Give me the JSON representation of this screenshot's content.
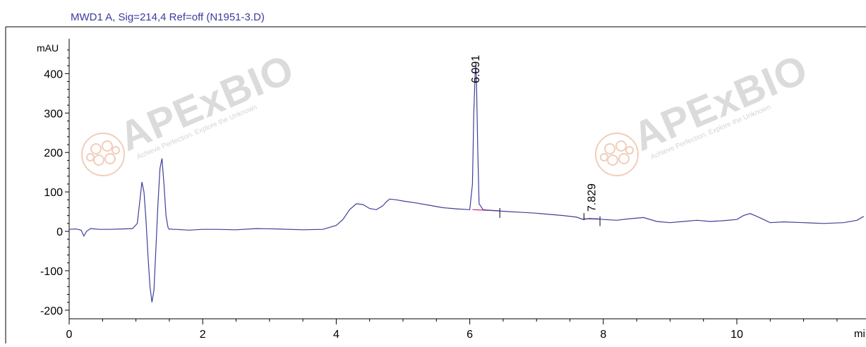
{
  "chart_data": {
    "type": "line",
    "title": "MWD1 A, Sig=214,4 Ref=off (N1951-3.D)",
    "ylabel": "mAU",
    "xlabel": "min",
    "xlim": [
      0,
      11.9
    ],
    "ylim": [
      -210,
      480
    ],
    "x_ticks": [
      0,
      2,
      4,
      6,
      8,
      10
    ],
    "y_ticks": [
      400,
      300,
      200,
      100,
      0,
      -100,
      -200
    ],
    "x_tick_labels": [
      "0",
      "2",
      "4",
      "6",
      "8",
      "10"
    ],
    "y_tick_labels": [
      "400",
      "300",
      "200",
      "100",
      "0",
      "-100",
      "-200"
    ],
    "grid": false,
    "legend": "none",
    "colors": {
      "trace": "#3f3f9a",
      "baseline": "#d0308a",
      "title": "#3a3aa0",
      "axis": "#000000",
      "watermark": "#d8d8d8",
      "watermark_accent": "#f0c8b4"
    },
    "peak_labels": [
      {
        "x": 6.091,
        "y": 400,
        "text": "6.091"
      },
      {
        "x": 7.829,
        "y": 32,
        "text": "7.829"
      }
    ],
    "series": [
      {
        "x": [
          0,
          0.1,
          0.18,
          0.22,
          0.26,
          0.32,
          0.45,
          0.6,
          0.8,
          0.95,
          1.02,
          1.06,
          1.09,
          1.12,
          1.15,
          1.18,
          1.21,
          1.24,
          1.27,
          1.3,
          1.33,
          1.36,
          1.39,
          1.42,
          1.45,
          1.48,
          1.5,
          1.52,
          1.55,
          1.6,
          1.7,
          1.8,
          2.0,
          2.2,
          2.5,
          2.8,
          3.1,
          3.5,
          3.8,
          4.0,
          4.1,
          4.2,
          4.3,
          4.4,
          4.5,
          4.6,
          4.7,
          4.75,
          4.8,
          4.9,
          5.0,
          5.2,
          5.4,
          5.6,
          5.8,
          6.0,
          6.04,
          6.06,
          6.08,
          6.091,
          6.1,
          6.12,
          6.14,
          6.2,
          6.4,
          6.6,
          6.8,
          7.0,
          7.2,
          7.4,
          7.6,
          7.7,
          7.8,
          7.829,
          7.9,
          8.0,
          8.2,
          8.4,
          8.6,
          8.8,
          9.0,
          9.2,
          9.4,
          9.6,
          9.8,
          10.0,
          10.1,
          10.2,
          10.3,
          10.4,
          10.5,
          10.7,
          11.0,
          11.3,
          11.6,
          11.8,
          11.9
        ],
        "y": [
          5,
          6,
          3,
          -12,
          0,
          7,
          5,
          5,
          6,
          7,
          20,
          80,
          125,
          100,
          30,
          -60,
          -140,
          -180,
          -150,
          -40,
          70,
          160,
          185,
          120,
          40,
          10,
          5,
          6,
          5,
          5,
          4,
          3,
          5,
          5,
          4,
          7,
          6,
          4,
          5,
          15,
          30,
          55,
          70,
          68,
          58,
          55,
          65,
          75,
          82,
          80,
          77,
          72,
          66,
          60,
          57,
          55,
          120,
          300,
          400,
          420,
          380,
          200,
          70,
          55,
          52,
          50,
          48,
          46,
          43,
          40,
          36,
          30,
          33,
          32,
          32,
          30,
          28,
          32,
          35,
          25,
          22,
          25,
          28,
          25,
          27,
          30,
          40,
          45,
          38,
          30,
          22,
          24,
          22,
          20,
          22,
          28,
          38
        ]
      }
    ]
  },
  "watermarks": [
    {
      "brand": "APExBIO",
      "tagline": "Achieve Perfection. Explore the Unknown"
    },
    {
      "brand": "APExBIO",
      "tagline": "Achieve Perfection. Explore the Unknown"
    }
  ]
}
